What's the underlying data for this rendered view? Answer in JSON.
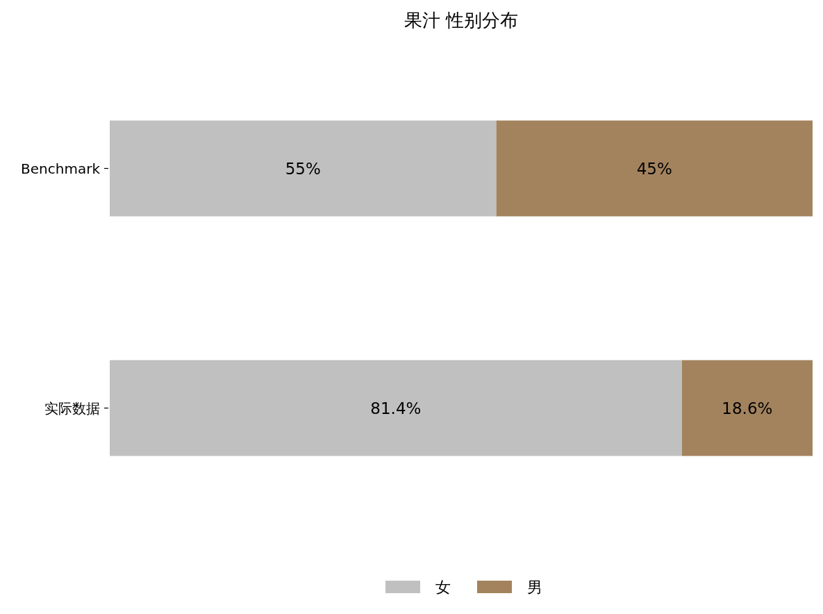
{
  "chart_data": {
    "type": "bar",
    "title": "果汁 性别分布",
    "orientation": "horizontal",
    "stacked": true,
    "legend": "bottom",
    "categories": [
      "Benchmark",
      "实际数据"
    ],
    "series": [
      {
        "name": "女",
        "color": "#c0c0c0",
        "values": [
          55,
          81.4
        ],
        "value_labels": [
          "55%",
          "81.4%"
        ]
      },
      {
        "name": "男",
        "color": "#a3835e",
        "values": [
          45,
          18.6
        ],
        "value_labels": [
          "45%",
          "18.6%"
        ]
      }
    ]
  }
}
